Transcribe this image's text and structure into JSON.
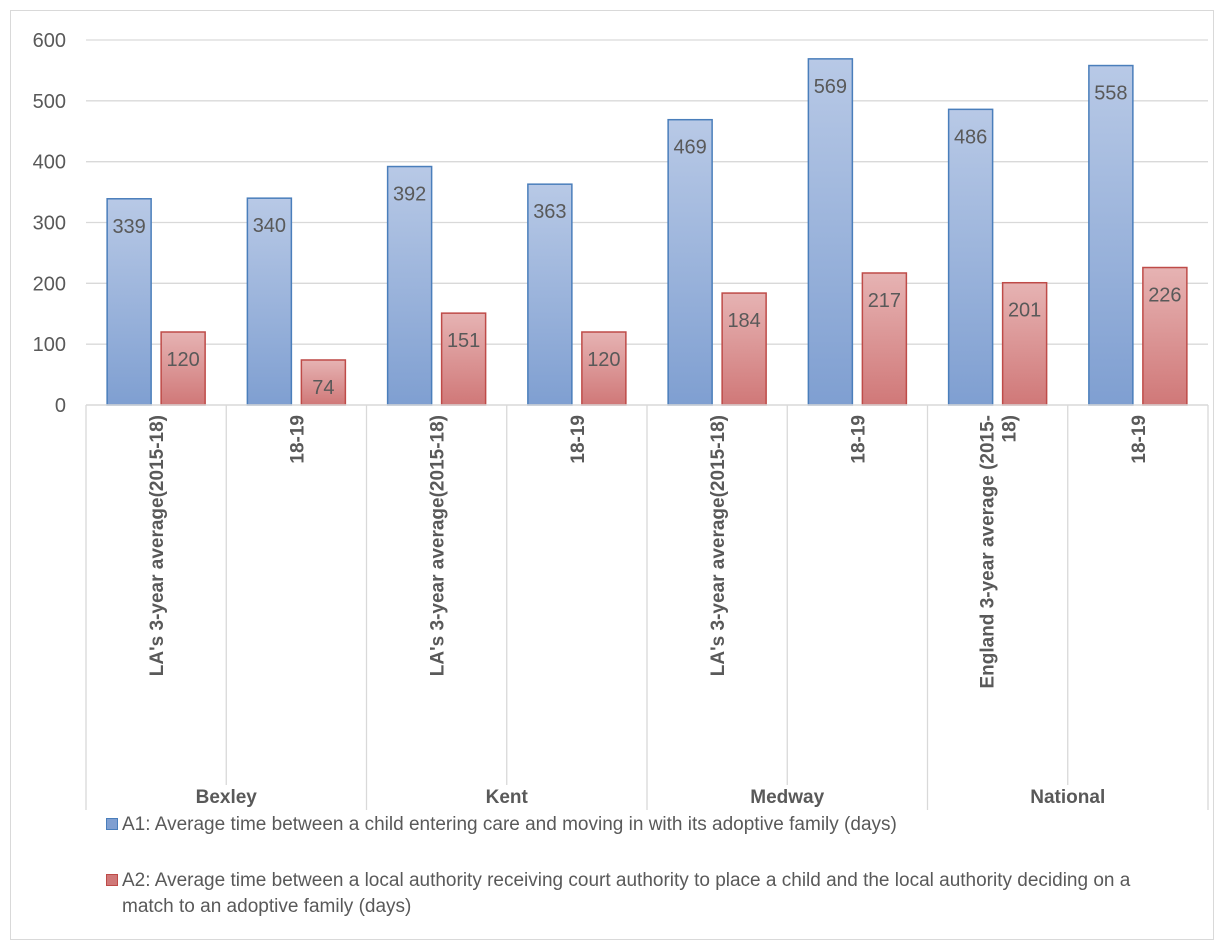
{
  "colors": {
    "series_a1_fill_top": "#b8c9e6",
    "series_a1_fill_bottom": "#7f9fd1",
    "series_a1_stroke": "#4a7ebb",
    "series_a2_fill_top": "#e6b3b3",
    "series_a2_fill_bottom": "#d07878",
    "series_a2_stroke": "#be4b48",
    "gridline": "#d9d9d9",
    "axis_text": "#595959"
  },
  "chart_data": {
    "type": "bar",
    "title": "",
    "xlabel": "",
    "ylabel": "",
    "ylim": [
      0,
      600
    ],
    "yticks": [
      0,
      100,
      200,
      300,
      400,
      500,
      600
    ],
    "grid": true,
    "legend_position": "bottom",
    "groups": [
      {
        "name": "Bexley",
        "categories": [
          "LA's 3-year average(2015-18)",
          "18-19"
        ]
      },
      {
        "name": "Kent",
        "categories": [
          "LA's 3-year average(2015-18)",
          "18-19"
        ]
      },
      {
        "name": "Medway",
        "categories": [
          "LA's 3-year average(2015-18)",
          "18-19"
        ]
      },
      {
        "name": "National",
        "categories": [
          "England 3-year average (2015-18)",
          "18-19"
        ]
      }
    ],
    "categories": [
      "LA's 3-year average(2015-18)",
      "18-19",
      "LA's 3-year average(2015-18)",
      "18-19",
      "LA's 3-year average(2015-18)",
      "18-19",
      "England 3-year average (2015-18)",
      "18-19"
    ],
    "series": [
      {
        "name": "A1: Average time between a child entering care and moving in with its adoptive family (days)",
        "values": [
          339,
          340,
          392,
          363,
          469,
          569,
          486,
          558
        ]
      },
      {
        "name": "A2: Average time between a local authority receiving court authority to place a child and the local authority deciding on a match to an adoptive family (days)",
        "values": [
          120,
          74,
          151,
          120,
          184,
          217,
          201,
          226
        ]
      }
    ]
  }
}
